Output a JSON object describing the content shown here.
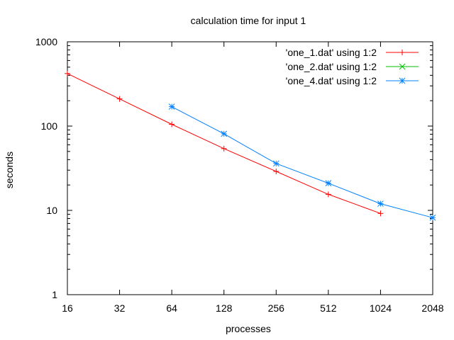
{
  "chart_data": {
    "type": "line",
    "title": "calculation time for input 1",
    "xlabel": "processes",
    "ylabel": "seconds",
    "x_scale": "log2",
    "y_scale": "log10",
    "xlim": [
      16,
      2048
    ],
    "ylim": [
      1,
      1000
    ],
    "x_ticks": [
      16,
      32,
      64,
      128,
      256,
      512,
      1024,
      2048
    ],
    "x_tick_labels": [
      "16",
      "32",
      "64",
      "128",
      "256",
      "512",
      "1024",
      "2048"
    ],
    "y_ticks": [
      1,
      10,
      100,
      1000
    ],
    "y_tick_labels": [
      "1",
      "10",
      "100",
      "1000"
    ],
    "grid": false,
    "legend_position": "top-right",
    "series": [
      {
        "name": "'one_1.dat' using 1:2",
        "color": "#ff0000",
        "marker": "plus",
        "x": [
          16,
          32,
          64,
          128,
          256,
          512,
          1024
        ],
        "y": [
          420,
          210,
          105,
          54,
          29,
          15.5,
          9.2
        ]
      },
      {
        "name": "'one_2.dat' using 1:2",
        "color": "#00c000",
        "marker": "cross",
        "x": [],
        "y": []
      },
      {
        "name": "'one_4.dat' using 1:2",
        "color": "#0080ff",
        "marker": "star",
        "x": [
          64,
          128,
          256,
          512,
          1024,
          2048
        ],
        "y": [
          170,
          81,
          36,
          21,
          12,
          8.2
        ]
      }
    ]
  }
}
